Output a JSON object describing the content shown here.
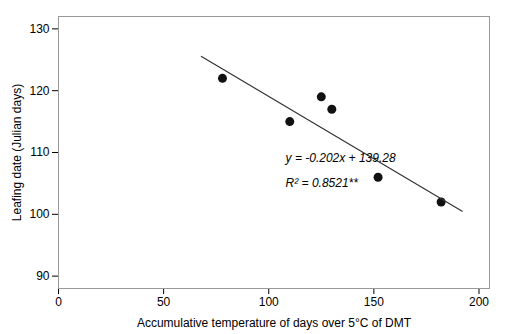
{
  "chart_data": {
    "type": "scatter",
    "xlabel": "Accumulative temperature of days over 5°C of DMT",
    "ylabel": "Leafing date (Julian days)",
    "xlim": [
      0,
      205
    ],
    "ylim": [
      88,
      132
    ],
    "xticks": [
      0,
      50,
      100,
      150,
      200
    ],
    "yticks": [
      90,
      100,
      110,
      120,
      130
    ],
    "grid": false,
    "series": [
      {
        "type": "scatter",
        "color": "#111111",
        "x": [
          78,
          110,
          125,
          130,
          152,
          182
        ],
        "values": [
          122,
          115,
          119,
          117,
          106,
          102
        ]
      },
      {
        "type": "line",
        "color": "#333333",
        "x": [
          68,
          192
        ],
        "values": [
          125.544,
          100.496
        ]
      }
    ],
    "annotations": [
      {
        "text": "y = -0.202x + 139.28",
        "x": 108,
        "y": 108.5
      },
      {
        "text": "R² = 0.8521**",
        "x": 108,
        "y": 104.5
      }
    ]
  }
}
